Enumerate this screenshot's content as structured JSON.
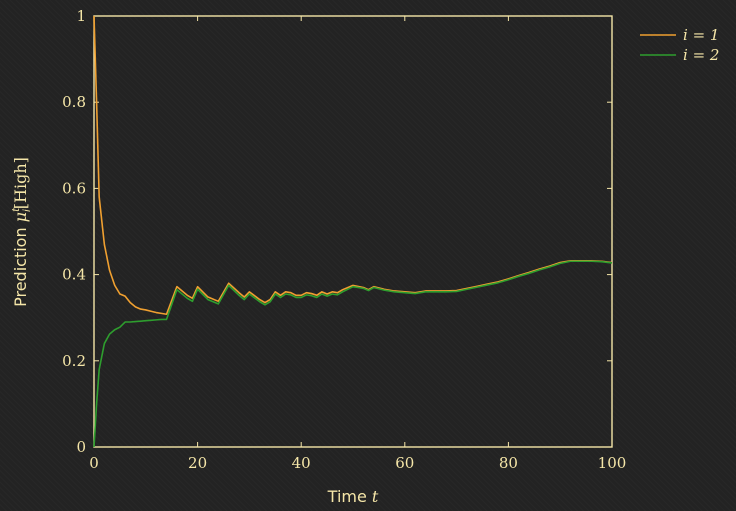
{
  "chart_data": {
    "type": "line",
    "xlabel": "Time t",
    "ylabel": "Prediction μ_i^t [High]",
    "xlim": [
      0,
      100
    ],
    "ylim": [
      0,
      1
    ],
    "xticks": [
      "0",
      "20",
      "40",
      "60",
      "80",
      "100"
    ],
    "yticks": [
      "0",
      "0.2",
      "0.4",
      "0.6",
      "0.8",
      "1"
    ],
    "grid": false,
    "legend_position": "outside-top-right",
    "colors": {
      "frame": "#f5e6a8",
      "background": "#232323"
    },
    "series": [
      {
        "name": "i = 1",
        "color": "#f0a030",
        "x": [
          0,
          0.5,
          1,
          2,
          3,
          4,
          5,
          6,
          7,
          8,
          9,
          10,
          11,
          12,
          13,
          14,
          16,
          18,
          19,
          20,
          22,
          24,
          26,
          28,
          29,
          30,
          32,
          33,
          34,
          35,
          36,
          37,
          38,
          39,
          40,
          41,
          42,
          43,
          44,
          45,
          46,
          47,
          48,
          50,
          52,
          53,
          54,
          56,
          58,
          60,
          62,
          64,
          66,
          68,
          70,
          72,
          74,
          76,
          78,
          80,
          82,
          84,
          86,
          88,
          90,
          92,
          94,
          96,
          98,
          100
        ],
        "y": [
          1.0,
          0.8,
          0.58,
          0.47,
          0.41,
          0.375,
          0.355,
          0.35,
          0.335,
          0.325,
          0.32,
          0.318,
          0.315,
          0.312,
          0.31,
          0.308,
          0.372,
          0.352,
          0.345,
          0.372,
          0.348,
          0.338,
          0.38,
          0.358,
          0.348,
          0.36,
          0.342,
          0.335,
          0.342,
          0.36,
          0.352,
          0.36,
          0.358,
          0.352,
          0.352,
          0.358,
          0.356,
          0.352,
          0.36,
          0.355,
          0.36,
          0.358,
          0.365,
          0.375,
          0.37,
          0.365,
          0.372,
          0.366,
          0.362,
          0.36,
          0.358,
          0.362,
          0.362,
          0.362,
          0.363,
          0.368,
          0.373,
          0.378,
          0.383,
          0.39,
          0.398,
          0.405,
          0.413,
          0.42,
          0.428,
          0.432,
          0.432,
          0.432,
          0.431,
          0.428
        ]
      },
      {
        "name": "i = 2",
        "color": "#2e9e2e",
        "x": [
          0,
          0.5,
          1,
          2,
          3,
          4,
          5,
          6,
          7,
          8,
          9,
          10,
          11,
          12,
          13,
          14,
          16,
          18,
          19,
          20,
          22,
          24,
          26,
          28,
          29,
          30,
          32,
          33,
          34,
          35,
          36,
          37,
          38,
          39,
          40,
          41,
          42,
          43,
          44,
          45,
          46,
          47,
          48,
          50,
          52,
          53,
          54,
          56,
          58,
          60,
          62,
          64,
          66,
          68,
          70,
          72,
          74,
          76,
          78,
          80,
          82,
          84,
          86,
          88,
          90,
          92,
          94,
          96,
          98,
          100
        ],
        "y": [
          0.0,
          0.1,
          0.18,
          0.24,
          0.262,
          0.272,
          0.278,
          0.29,
          0.29,
          0.291,
          0.292,
          0.293,
          0.294,
          0.295,
          0.296,
          0.296,
          0.365,
          0.345,
          0.338,
          0.366,
          0.342,
          0.332,
          0.375,
          0.352,
          0.342,
          0.355,
          0.337,
          0.33,
          0.337,
          0.355,
          0.347,
          0.355,
          0.353,
          0.347,
          0.347,
          0.353,
          0.351,
          0.347,
          0.355,
          0.35,
          0.355,
          0.353,
          0.36,
          0.372,
          0.368,
          0.363,
          0.37,
          0.364,
          0.36,
          0.358,
          0.356,
          0.36,
          0.36,
          0.36,
          0.361,
          0.366,
          0.371,
          0.376,
          0.381,
          0.388,
          0.396,
          0.403,
          0.411,
          0.418,
          0.426,
          0.431,
          0.431,
          0.431,
          0.43,
          0.427
        ]
      }
    ]
  }
}
